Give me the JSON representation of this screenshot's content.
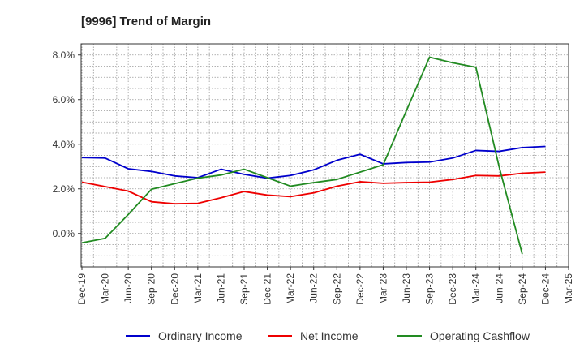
{
  "chart_data": {
    "type": "line",
    "title": "[9996]  Trend of Margin",
    "xlabel": "",
    "ylabel": "",
    "ylim": [
      -1.5,
      8.5
    ],
    "yticks": [
      0.0,
      2.0,
      4.0,
      6.0,
      8.0
    ],
    "ytick_labels": [
      "0.0%",
      "2.0%",
      "4.0%",
      "6.0%",
      "8.0%"
    ],
    "x_tick_labels": [
      "Dec-19",
      "Mar-20",
      "Jun-20",
      "Sep-20",
      "Dec-20",
      "Mar-21",
      "Jun-21",
      "Sep-21",
      "Dec-21",
      "Mar-22",
      "Jun-22",
      "Sep-22",
      "Dec-22",
      "Mar-23",
      "Jun-23",
      "Sep-23",
      "Dec-23",
      "Mar-24",
      "Jun-24",
      "Sep-24",
      "Dec-24",
      "Mar-25"
    ],
    "grid": true,
    "legend_position": "bottom",
    "series": [
      {
        "name": "Ordinary Income",
        "color": "#0000cc",
        "values": [
          3.4,
          3.38,
          2.9,
          2.78,
          2.58,
          2.5,
          2.88,
          2.65,
          2.48,
          2.6,
          2.85,
          3.28,
          3.55,
          3.12,
          3.18,
          3.2,
          3.38,
          3.72,
          3.68,
          3.85,
          3.9,
          null
        ]
      },
      {
        "name": "Net Income",
        "color": "#ee0000",
        "values": [
          2.3,
          2.1,
          1.9,
          1.42,
          1.33,
          1.35,
          1.6,
          1.88,
          1.72,
          1.65,
          1.82,
          2.12,
          2.32,
          2.25,
          2.28,
          2.3,
          2.42,
          2.6,
          2.58,
          2.7,
          2.75,
          null
        ]
      },
      {
        "name": "Operating Cashflow",
        "color": "#228b22",
        "values": [
          -0.42,
          -0.22,
          0.85,
          1.98,
          2.23,
          2.48,
          2.62,
          2.88,
          2.5,
          2.12,
          2.28,
          2.42,
          2.75,
          3.08,
          5.5,
          7.9,
          7.65,
          7.45,
          3.0,
          -0.92,
          null,
          null
        ]
      }
    ]
  }
}
